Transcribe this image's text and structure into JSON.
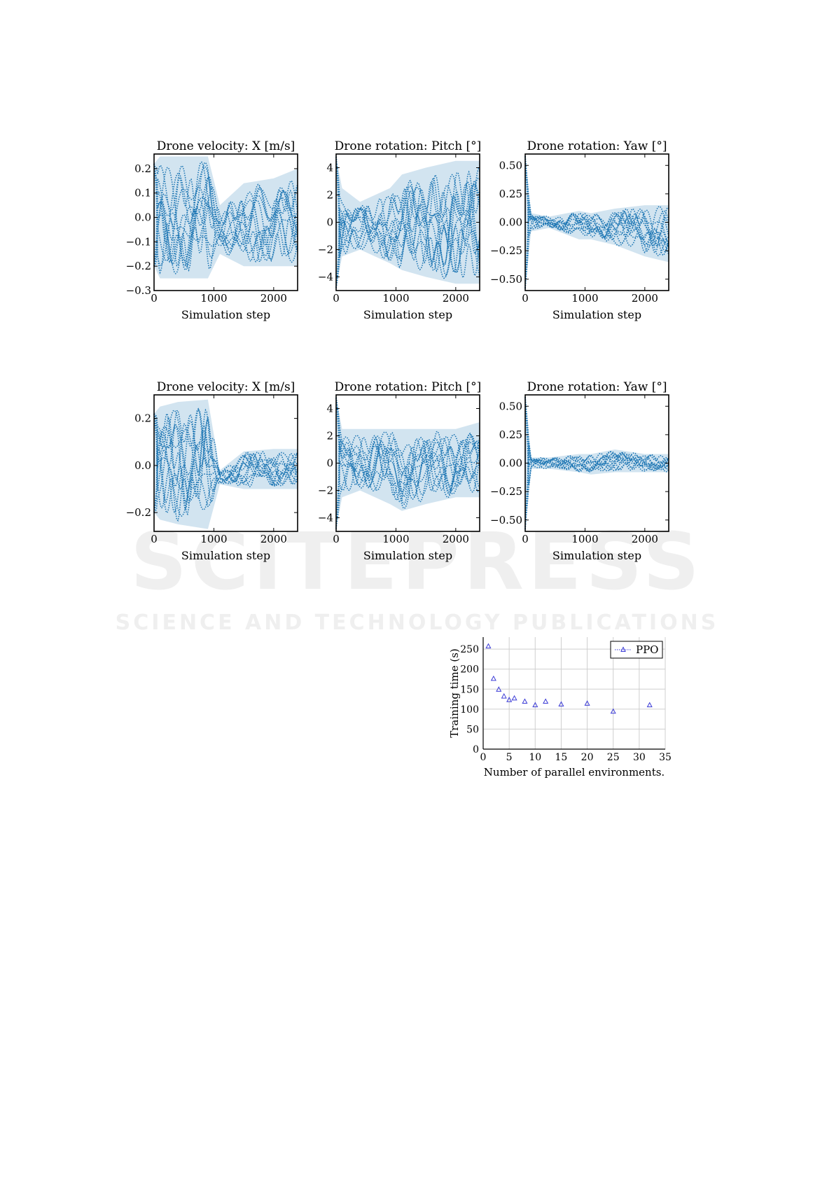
{
  "watermark": {
    "line1": "SCITEPRESS",
    "line2": "SCIENCE AND TECHNOLOGY PUBLICATIONS"
  },
  "chart_data": [
    {
      "type": "line",
      "title": "Drone velocity: X [m/s]",
      "xlabel": "Simulation step",
      "ylabel": "",
      "xlim": [
        0,
        2400
      ],
      "ylim": [
        -0.3,
        0.26
      ],
      "xticks": [
        0,
        1000,
        2000
      ],
      "yticks": [
        -0.3,
        -0.2,
        -0.1,
        0.0,
        0.1,
        0.2
      ],
      "ytick_labels": [
        "−0.3",
        "−0.2",
        "−0.1",
        "0.0",
        "0.1",
        "0.2"
      ],
      "series_style": "dotted traces with shaded envelope",
      "color": "#1f77b4",
      "envelope": {
        "x": [
          0,
          100,
          400,
          900,
          1100,
          1500,
          2000,
          2400
        ],
        "upper": [
          0.22,
          0.25,
          0.25,
          0.25,
          0.05,
          0.14,
          0.16,
          0.2
        ],
        "lower": [
          -0.2,
          -0.25,
          -0.25,
          -0.25,
          -0.15,
          -0.2,
          -0.2,
          -0.2
        ]
      }
    },
    {
      "type": "line",
      "title": "Drone rotation: Pitch [°]",
      "xlabel": "Simulation step",
      "ylabel": "",
      "xlim": [
        0,
        2400
      ],
      "ylim": [
        -5,
        5
      ],
      "xticks": [
        0,
        1000,
        2000
      ],
      "yticks": [
        -4,
        -2,
        0,
        2,
        4
      ],
      "ytick_labels": [
        "−4",
        "−2",
        "0",
        "2",
        "4"
      ],
      "series_style": "dotted traces with shaded envelope",
      "color": "#1f77b4",
      "envelope": {
        "x": [
          0,
          100,
          400,
          900,
          1100,
          1500,
          2000,
          2400
        ],
        "upper": [
          4.8,
          2.5,
          1.5,
          2.5,
          3.5,
          4.0,
          4.5,
          4.5
        ],
        "lower": [
          -4.8,
          -2.5,
          -2.0,
          -3.0,
          -3.5,
          -4.0,
          -4.5,
          -4.5
        ]
      }
    },
    {
      "type": "line",
      "title": "Drone rotation: Yaw [°]",
      "xlabel": "Simulation step",
      "ylabel": "",
      "xlim": [
        0,
        2400
      ],
      "ylim": [
        -0.6,
        0.6
      ],
      "xticks": [
        0,
        1000,
        2000
      ],
      "yticks": [
        -0.5,
        -0.25,
        0.0,
        0.25,
        0.5
      ],
      "ytick_labels": [
        "−0.50",
        "−0.25",
        "0.00",
        "0.25",
        "0.50"
      ],
      "series_style": "dotted traces with shaded envelope",
      "color": "#1f77b4",
      "envelope": {
        "x": [
          0,
          100,
          400,
          900,
          1100,
          1500,
          2000,
          2400
        ],
        "upper": [
          0.58,
          0.08,
          0.05,
          0.1,
          0.08,
          0.12,
          0.15,
          0.15
        ],
        "lower": [
          -0.58,
          -0.08,
          -0.05,
          -0.15,
          -0.15,
          -0.2,
          -0.3,
          -0.35
        ]
      }
    },
    {
      "type": "line",
      "title": "Drone velocity: X [m/s]",
      "xlabel": "Simulation step",
      "ylabel": "",
      "xlim": [
        0,
        2400
      ],
      "ylim": [
        -0.28,
        0.3
      ],
      "xticks": [
        0,
        1000,
        2000
      ],
      "yticks": [
        -0.2,
        0.0,
        0.2
      ],
      "ytick_labels": [
        "−0.2",
        "0.0",
        "0.2"
      ],
      "series_style": "dotted traces with shaded envelope",
      "color": "#1f77b4",
      "envelope": {
        "x": [
          0,
          100,
          400,
          900,
          1100,
          1500,
          2000,
          2400
        ],
        "upper": [
          0.22,
          0.25,
          0.27,
          0.28,
          -0.02,
          0.06,
          0.07,
          0.07
        ],
        "lower": [
          -0.2,
          -0.23,
          -0.25,
          -0.27,
          -0.08,
          -0.1,
          -0.1,
          -0.1
        ]
      }
    },
    {
      "type": "line",
      "title": "Drone rotation: Pitch [°]",
      "xlabel": "Simulation step",
      "ylabel": "",
      "xlim": [
        0,
        2400
      ],
      "ylim": [
        -5,
        5
      ],
      "xticks": [
        0,
        1000,
        2000
      ],
      "yticks": [
        -4,
        -2,
        0,
        2,
        4
      ],
      "ytick_labels": [
        "−4",
        "−2",
        "0",
        "2",
        "4"
      ],
      "series_style": "dotted traces with shaded envelope",
      "color": "#1f77b4",
      "envelope": {
        "x": [
          0,
          100,
          400,
          900,
          1100,
          1500,
          2000,
          2400
        ],
        "upper": [
          4.8,
          2.5,
          2.5,
          2.5,
          2.5,
          2.5,
          2.5,
          3.0
        ],
        "lower": [
          -4.8,
          -2.5,
          -2.0,
          -3.0,
          -3.5,
          -3.0,
          -2.5,
          -2.5
        ]
      }
    },
    {
      "type": "line",
      "title": "Drone rotation: Yaw [°]",
      "xlabel": "Simulation step",
      "ylabel": "",
      "xlim": [
        0,
        2400
      ],
      "ylim": [
        -0.6,
        0.6
      ],
      "xticks": [
        0,
        1000,
        2000
      ],
      "yticks": [
        -0.5,
        -0.25,
        0.0,
        0.25,
        0.5
      ],
      "ytick_labels": [
        "−0.50",
        "−0.25",
        "0.00",
        "0.25",
        "0.50"
      ],
      "series_style": "dotted traces with shaded envelope",
      "color": "#1f77b4",
      "envelope": {
        "x": [
          0,
          100,
          400,
          900,
          1100,
          1500,
          2000,
          2400
        ],
        "upper": [
          0.58,
          0.05,
          0.05,
          0.08,
          0.08,
          0.12,
          0.08,
          0.08
        ],
        "lower": [
          -0.58,
          -0.05,
          -0.05,
          -0.08,
          -0.1,
          -0.08,
          -0.08,
          -0.08
        ]
      }
    },
    {
      "type": "scatter",
      "title": "",
      "xlabel": "Number of parallel environments.",
      "ylabel": "Training time (s)",
      "xlim": [
        0,
        35
      ],
      "ylim": [
        0,
        280
      ],
      "xticks": [
        0,
        5,
        10,
        15,
        20,
        25,
        30,
        35
      ],
      "yticks": [
        0,
        50,
        100,
        150,
        200,
        250
      ],
      "grid": true,
      "legend": "top-right",
      "color": "#3b3bd6",
      "series": [
        {
          "name": "PPO",
          "x": [
            1,
            2,
            3,
            4,
            5,
            6,
            8,
            10,
            12,
            15,
            20,
            25,
            32
          ],
          "y": [
            257,
            176,
            149,
            132,
            123,
            127,
            119,
            110,
            119,
            112,
            114,
            94,
            110
          ]
        }
      ]
    }
  ]
}
